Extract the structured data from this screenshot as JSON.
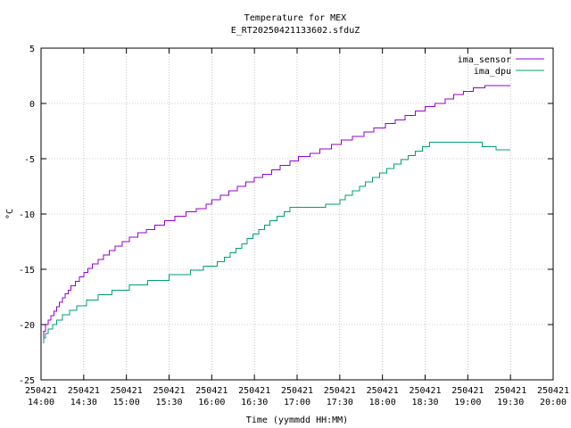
{
  "chart_data": {
    "type": "line",
    "title": "Temperature for MEX",
    "subtitle": "E_RT20250421133602.sfduZ",
    "xlabel": "Time (yymmdd HH:MM)",
    "ylabel": "°C",
    "ylim": [
      -25,
      5
    ],
    "yticks": [
      {
        "value": 5,
        "label": "5"
      },
      {
        "value": 0,
        "label": "0"
      },
      {
        "value": -5,
        "label": "-5"
      },
      {
        "value": -10,
        "label": "-10"
      },
      {
        "value": -15,
        "label": "-15"
      },
      {
        "value": -20,
        "label": "-20"
      },
      {
        "value": -25,
        "label": "-25"
      }
    ],
    "xlim": [
      "250421 14:00",
      "250421 20:00"
    ],
    "xticks": [
      {
        "date": "250421",
        "time": "14:00"
      },
      {
        "date": "250421",
        "time": "14:30"
      },
      {
        "date": "250421",
        "time": "15:00"
      },
      {
        "date": "250421",
        "time": "15:30"
      },
      {
        "date": "250421",
        "time": "16:00"
      },
      {
        "date": "250421",
        "time": "16:30"
      },
      {
        "date": "250421",
        "time": "17:00"
      },
      {
        "date": "250421",
        "time": "17:30"
      },
      {
        "date": "250421",
        "time": "18:00"
      },
      {
        "date": "250421",
        "time": "18:30"
      },
      {
        "date": "250421",
        "time": "19:00"
      },
      {
        "date": "250421",
        "time": "19:30"
      },
      {
        "date": "250421",
        "time": "20:00"
      }
    ],
    "grid": true,
    "legend_position": "top-right",
    "series": [
      {
        "name": "ima_sensor",
        "color": "#9400d3",
        "points": [
          [
            "14:02",
            -21.5
          ],
          [
            "14:03",
            -20.6
          ],
          [
            "14:05",
            -20.0
          ],
          [
            "14:07",
            -19.6
          ],
          [
            "14:09",
            -19.2
          ],
          [
            "14:11",
            -18.8
          ],
          [
            "14:13",
            -18.4
          ],
          [
            "14:15",
            -18.0
          ],
          [
            "14:17",
            -17.6
          ],
          [
            "14:19",
            -17.2
          ],
          [
            "14:21",
            -16.9
          ],
          [
            "14:24",
            -16.5
          ],
          [
            "14:27",
            -16.1
          ],
          [
            "14:30",
            -15.7
          ],
          [
            "14:33",
            -15.3
          ],
          [
            "14:36",
            -14.9
          ],
          [
            "14:40",
            -14.5
          ],
          [
            "14:44",
            -14.1
          ],
          [
            "14:48",
            -13.7
          ],
          [
            "14:52",
            -13.3
          ],
          [
            "14:57",
            -12.9
          ],
          [
            "15:02",
            -12.5
          ],
          [
            "15:08",
            -12.1
          ],
          [
            "15:14",
            -11.7
          ],
          [
            "15:20",
            -11.4
          ],
          [
            "15:27",
            -11.0
          ],
          [
            "15:34",
            -10.6
          ],
          [
            "15:42",
            -10.2
          ],
          [
            "15:49",
            -9.8
          ],
          [
            "15:56",
            -9.5
          ],
          [
            "16:00",
            -9.1
          ],
          [
            "16:06",
            -8.7
          ],
          [
            "16:12",
            -8.3
          ],
          [
            "16:18",
            -7.9
          ],
          [
            "16:24",
            -7.5
          ],
          [
            "16:30",
            -7.1
          ],
          [
            "16:36",
            -6.7
          ],
          [
            "16:42",
            -6.4
          ],
          [
            "16:48",
            -6.0
          ],
          [
            "16:55",
            -5.6
          ],
          [
            "17:01",
            -5.2
          ],
          [
            "17:09",
            -4.8
          ],
          [
            "17:16",
            -4.5
          ],
          [
            "17:24",
            -4.1
          ],
          [
            "17:31",
            -3.7
          ],
          [
            "17:39",
            -3.3
          ],
          [
            "17:47",
            -3.0
          ],
          [
            "17:54",
            -2.6
          ],
          [
            "18:02",
            -2.2
          ],
          [
            "18:09",
            -1.8
          ],
          [
            "18:16",
            -1.5
          ],
          [
            "18:23",
            -1.1
          ],
          [
            "18:30",
            -0.7
          ],
          [
            "18:37",
            -0.3
          ],
          [
            "18:44",
            0.0
          ],
          [
            "18:50",
            0.4
          ],
          [
            "18:57",
            0.8
          ],
          [
            "19:04",
            1.1
          ],
          [
            "19:12",
            1.4
          ],
          [
            "19:20",
            1.6
          ],
          [
            "19:30",
            1.6
          ]
        ]
      },
      {
        "name": "ima_dpu",
        "color": "#009e73",
        "points": [
          [
            "14:02",
            -21.7
          ],
          [
            "14:03",
            -21.2
          ],
          [
            "14:05",
            -20.8
          ],
          [
            "14:08",
            -20.4
          ],
          [
            "14:11",
            -20.0
          ],
          [
            "14:15",
            -19.6
          ],
          [
            "14:20",
            -19.1
          ],
          [
            "14:25",
            -18.7
          ],
          [
            "14:32",
            -18.3
          ],
          [
            "14:40",
            -17.8
          ],
          [
            "14:50",
            -17.3
          ],
          [
            "15:02",
            -16.9
          ],
          [
            "15:15",
            -16.4
          ],
          [
            "15:30",
            -16.0
          ],
          [
            "15:45",
            -15.5
          ],
          [
            "15:54",
            -15.1
          ],
          [
            "16:04",
            -14.7
          ],
          [
            "16:09",
            -14.3
          ],
          [
            "16:13",
            -13.9
          ],
          [
            "16:17",
            -13.5
          ],
          [
            "16:21",
            -13.1
          ],
          [
            "16:25",
            -12.7
          ],
          [
            "16:29",
            -12.2
          ],
          [
            "16:33",
            -11.8
          ],
          [
            "16:37",
            -11.4
          ],
          [
            "16:41",
            -11.0
          ],
          [
            "16:46",
            -10.6
          ],
          [
            "16:51",
            -10.2
          ],
          [
            "16:55",
            -9.8
          ],
          [
            "17:00",
            -9.4
          ],
          [
            "17:20",
            -9.4
          ],
          [
            "17:30",
            -9.1
          ],
          [
            "17:34",
            -8.7
          ],
          [
            "17:39",
            -8.3
          ],
          [
            "17:44",
            -7.9
          ],
          [
            "17:48",
            -7.5
          ],
          [
            "17:53",
            -7.1
          ],
          [
            "17:58",
            -6.7
          ],
          [
            "18:03",
            -6.3
          ],
          [
            "18:08",
            -5.9
          ],
          [
            "18:13",
            -5.5
          ],
          [
            "18:18",
            -5.1
          ],
          [
            "18:23",
            -4.7
          ],
          [
            "18:28",
            -4.3
          ],
          [
            "18:33",
            -3.9
          ],
          [
            "18:40",
            -3.5
          ],
          [
            "18:55",
            -3.5
          ],
          [
            "19:10",
            -3.5
          ],
          [
            "19:20",
            -3.9
          ],
          [
            "19:30",
            -4.2
          ]
        ]
      }
    ]
  }
}
